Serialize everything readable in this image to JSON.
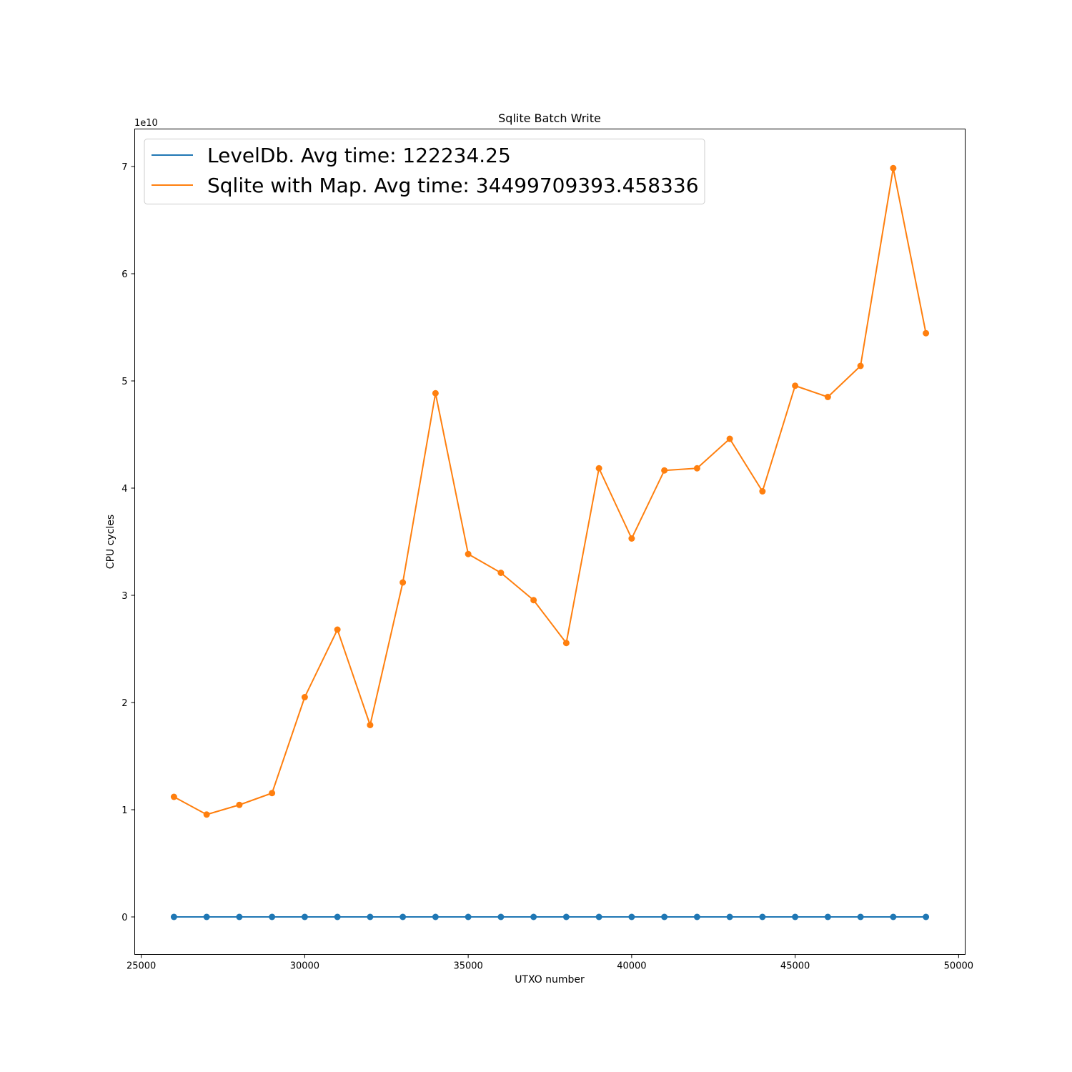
{
  "chart_data": {
    "type": "line",
    "title": "Sqlite Batch Write",
    "xlabel": "UTXO number",
    "ylabel": "CPU cycles",
    "y_offset_label": "1e10",
    "xlim": [
      24800,
      50200
    ],
    "ylim": [
      -3500000000.0,
      73500000000.0
    ],
    "x_ticks": [
      25000,
      30000,
      35000,
      40000,
      45000,
      50000
    ],
    "x_tick_labels": [
      "25000",
      "30000",
      "35000",
      "40000",
      "45000",
      "50000"
    ],
    "y_ticks": [
      0,
      10000000000,
      20000000000,
      30000000000,
      40000000000,
      50000000000,
      60000000000,
      70000000000
    ],
    "y_tick_labels": [
      "0",
      "1",
      "2",
      "3",
      "4",
      "5",
      "6",
      "7"
    ],
    "grid": false,
    "legend_position": "top-left",
    "x": [
      26000,
      27000,
      28000,
      29000,
      30000,
      31000,
      32000,
      33000,
      34000,
      35000,
      36000,
      37000,
      38000,
      39000,
      40000,
      41000,
      42000,
      43000,
      44000,
      45000,
      46000,
      47000,
      48000,
      49000
    ],
    "series": [
      {
        "name": "LevelDb. Avg time: 122234.25",
        "color": "#1f77b4",
        "values": [
          122000,
          122000,
          122000,
          122000,
          122000,
          122000,
          122000,
          122000,
          122000,
          122000,
          122000,
          122000,
          122000,
          122000,
          122000,
          122000,
          122000,
          122000,
          122000,
          122000,
          122000,
          122000,
          122000,
          122000
        ]
      },
      {
        "name": "Sqlite with Map. Avg time: 34499709393.458336",
        "color": "#ff7f0e",
        "values": [
          11200000000,
          9550000000,
          10450000000,
          11550000000,
          20500000000,
          26800000000,
          17900000000,
          31200000000,
          48850000000,
          33850000000,
          32100000000,
          29550000000,
          25550000000,
          41850000000,
          35300000000,
          41650000000,
          41850000000,
          44600000000,
          39700000000,
          49550000000,
          48500000000,
          51400000000,
          69850000000,
          54450000000
        ]
      }
    ]
  }
}
